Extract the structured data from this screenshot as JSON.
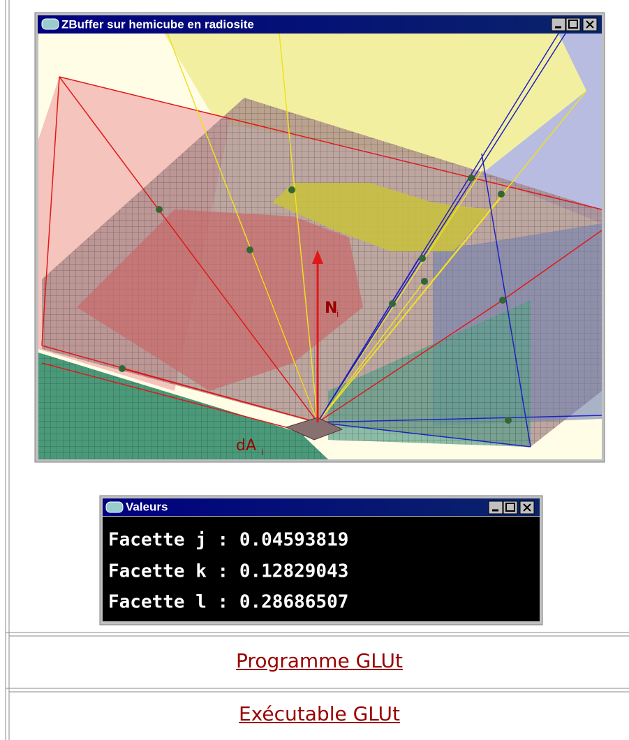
{
  "render_window": {
    "title": "ZBuffer sur hemicube en radiosite",
    "normal_label": "N",
    "normal_sub": "i",
    "area_label": "dA",
    "area_sub": "i"
  },
  "values_window": {
    "title": "Valeurs",
    "lines": [
      "Facette j : 0.04593819",
      "Facette k : 0.12829043",
      "Facette l : 0.28686507"
    ]
  },
  "links": [
    "Programme GLUt",
    "Exécutable GLUt"
  ]
}
